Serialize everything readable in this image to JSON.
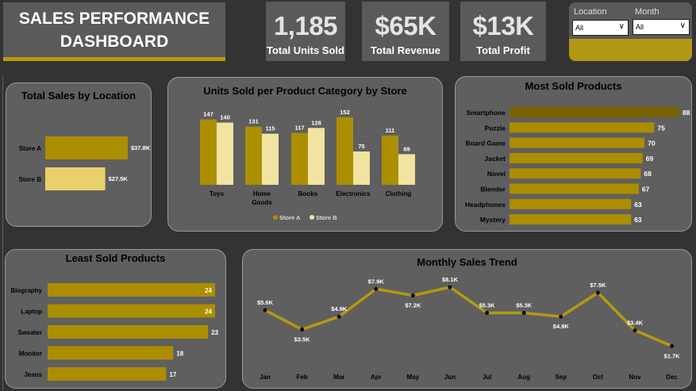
{
  "header": {
    "title_line1": "SALES PERFORMANCE",
    "title_line2": "DASHBOARD"
  },
  "kpis": [
    {
      "value": "1,185",
      "label": "Total Units Sold"
    },
    {
      "value": "$65K",
      "label": "Total Revenue"
    },
    {
      "value": "$13K",
      "label": "Total Profit"
    }
  ],
  "filters": {
    "location": {
      "label": "Location",
      "selected": "All"
    },
    "month": {
      "label": "Month",
      "selected": "All"
    }
  },
  "colors": {
    "store_a": "#ac8f00",
    "store_b": "#f1e3a0",
    "store_b_bar": "#e8d16a",
    "most_top": "#7a6300",
    "bar": "#ab8d00",
    "line": "#b39a10",
    "panel": "#5f5f5f",
    "background": "#333333"
  },
  "charts": {
    "location": {
      "title": "Total Sales by Location"
    },
    "category": {
      "title": "Units Sold per Product Category by Store",
      "legend_a": "Store A",
      "legend_b": "Store B"
    },
    "most": {
      "title": "Most Sold Products"
    },
    "least": {
      "title": "Least Sold Products"
    },
    "trend": {
      "title": "Monthly Sales Trend"
    }
  },
  "chart_data": [
    {
      "type": "bar",
      "orientation": "horizontal",
      "title": "Total Sales by Location",
      "categories": [
        "Store A",
        "Store B"
      ],
      "values": [
        37.8,
        27.5
      ],
      "labels": [
        "$37.8K",
        "$27.5K"
      ],
      "unit": "K USD"
    },
    {
      "type": "bar",
      "title": "Units Sold per Product Category by Store",
      "categories": [
        "Toys",
        "Home Goods",
        "Books",
        "Electronics",
        "Clothing"
      ],
      "series": [
        {
          "name": "Store A",
          "values": [
            147,
            131,
            117,
            152,
            111
          ]
        },
        {
          "name": "Store B",
          "values": [
            140,
            115,
            128,
            75,
            69
          ]
        }
      ],
      "legend": "bottom"
    },
    {
      "type": "bar",
      "orientation": "horizontal",
      "title": "Most Sold Products",
      "categories": [
        "Smartphone",
        "Puzzle",
        "Board Game",
        "Jacket",
        "Novel",
        "Blender",
        "Headphones",
        "Mystery"
      ],
      "values": [
        88,
        75,
        70,
        69,
        68,
        67,
        63,
        63
      ]
    },
    {
      "type": "bar",
      "orientation": "horizontal",
      "title": "Least Sold Products",
      "categories": [
        "Biography",
        "Laptop",
        "Sweater",
        "Monitor",
        "Jeans"
      ],
      "values": [
        24,
        24,
        23,
        18,
        17
      ]
    },
    {
      "type": "line",
      "title": "Monthly Sales Trend",
      "x": [
        "Jan",
        "Feb",
        "Mar",
        "Apr",
        "May",
        "Jun",
        "Jul",
        "Aug",
        "Sep",
        "Oct",
        "Nov",
        "Dec"
      ],
      "values": [
        5.6,
        3.5,
        4.9,
        7.9,
        7.2,
        8.1,
        5.3,
        5.3,
        4.9,
        7.5,
        3.4,
        1.7
      ],
      "labels": [
        "$5.6K",
        "$3.5K",
        "$4.9K",
        "$7.9K",
        "$7.2K",
        "$8.1K",
        "$5.3K",
        "$5.3K",
        "$4.9K",
        "$7.5K",
        "$3.4K",
        "$1.7K"
      ],
      "unit": "K USD"
    }
  ]
}
